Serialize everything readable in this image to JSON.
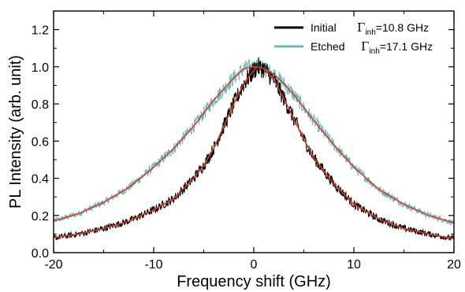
{
  "chart_data": {
    "type": "line",
    "title": "",
    "xlabel": "Frequency shift (GHz)",
    "ylabel": "PL Intensity (arb. unit)",
    "xlim": [
      -20,
      20
    ],
    "ylim": [
      0.0,
      1.3
    ],
    "x_ticks": [
      -20,
      -10,
      0,
      10,
      20
    ],
    "x_tick_labels": [
      "-20",
      "-10",
      "0",
      "10",
      "20"
    ],
    "y_ticks": [
      0.0,
      0.2,
      0.4,
      0.6,
      0.8,
      1.0,
      1.2
    ],
    "y_tick_labels": [
      "0.0",
      "0.2",
      "0.4",
      "0.6",
      "0.8",
      "1.0",
      "1.2"
    ],
    "grid": false,
    "legend_position": "top-right",
    "series": [
      {
        "name": "Initial",
        "fwhm_label": "=10.8 GHz",
        "color": "#000000",
        "center_ghz": 0.3,
        "noise_amplitude": 0.03,
        "x": [
          -20,
          -17.5,
          -15,
          -12.5,
          -10,
          -8,
          -6,
          -5,
          -4,
          -3,
          -2,
          -1,
          0,
          0.3,
          1,
          2,
          3,
          4,
          5,
          6,
          8,
          10,
          12.5,
          15,
          17.5,
          20
        ],
        "y": [
          0.08,
          0.1,
          0.13,
          0.17,
          0.23,
          0.29,
          0.4,
          0.47,
          0.56,
          0.68,
          0.8,
          0.91,
          0.98,
          1.0,
          0.99,
          0.93,
          0.83,
          0.72,
          0.61,
          0.51,
          0.37,
          0.26,
          0.18,
          0.13,
          0.1,
          0.075
        ]
      },
      {
        "name": "Etched",
        "fwhm_label": "=17.1 GHz",
        "color": "#6bbdbd",
        "center_ghz": 0.3,
        "noise_amplitude": 0.025,
        "x": [
          -20,
          -17.5,
          -15,
          -12.5,
          -10,
          -8,
          -6,
          -5,
          -4,
          -3,
          -2,
          -1,
          0,
          0.3,
          1,
          2,
          3,
          4,
          5,
          6,
          8,
          10,
          12.5,
          15,
          17.5,
          20
        ],
        "y": [
          0.17,
          0.21,
          0.27,
          0.35,
          0.46,
          0.56,
          0.68,
          0.75,
          0.82,
          0.88,
          0.94,
          0.99,
          1.0,
          1.0,
          0.99,
          0.96,
          0.91,
          0.85,
          0.78,
          0.71,
          0.58,
          0.46,
          0.34,
          0.26,
          0.2,
          0.16
        ]
      }
    ],
    "fits": [
      {
        "of": "Initial",
        "color": "#d93a2b",
        "fwhm_ghz": 10.8,
        "center_ghz": 0.3
      },
      {
        "of": "Etched",
        "color": "#d93a2b",
        "fwhm_ghz": 17.1,
        "center_ghz": 0.3
      }
    ],
    "gamma_symbol": "Γ",
    "gamma_subscript": "inh"
  }
}
